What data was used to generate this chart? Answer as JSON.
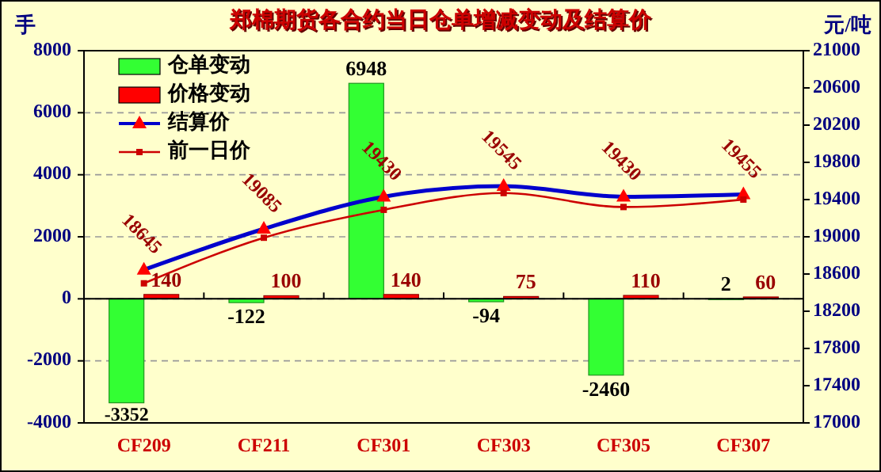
{
  "chart_data": {
    "type": "bar",
    "title": "郑棉期货各合约当日仓单增减变动及结算价",
    "ylabel": "手",
    "y2label": "元/吨",
    "categories": [
      "CF209",
      "CF211",
      "CF301",
      "CF303",
      "CF305",
      "CF307"
    ],
    "series": [
      {
        "name": "仓单变动",
        "color": "#33ff33",
        "values": [
          -3352,
          -122,
          6948,
          -94,
          -2460,
          2
        ],
        "value_labels": [
          "-3352",
          "-122",
          "6948",
          "-94",
          "-2460",
          "2"
        ]
      },
      {
        "name": "价格变动",
        "color": "#ff0000",
        "values": [
          140,
          100,
          140,
          75,
          110,
          60
        ],
        "value_labels": [
          "140",
          "100",
          "140",
          "75",
          "110",
          "60"
        ]
      },
      {
        "name": "结算价",
        "type": "line",
        "axis": "y2",
        "color": "#0000cc",
        "marker": "triangle",
        "values": [
          18645,
          19085,
          19430,
          19545,
          19430,
          19455
        ],
        "value_labels": [
          "18645",
          "19085",
          "19430",
          "19545",
          "19430",
          "19455"
        ]
      },
      {
        "name": "前一日价",
        "type": "line",
        "axis": "y2",
        "color": "#cc0000",
        "marker": "square",
        "values": [
          18500,
          18990,
          19290,
          19470,
          19320,
          19400
        ]
      }
    ],
    "ylim": [
      -4000,
      8000
    ],
    "yticks": [
      -4000,
      -2000,
      0,
      2000,
      4000,
      6000,
      8000
    ],
    "y2lim": [
      17000,
      21000
    ],
    "y2ticks": [
      17000,
      17400,
      17800,
      18200,
      18600,
      19000,
      19400,
      19800,
      20200,
      20600,
      21000
    ],
    "grid": "y",
    "legend": "top left"
  }
}
